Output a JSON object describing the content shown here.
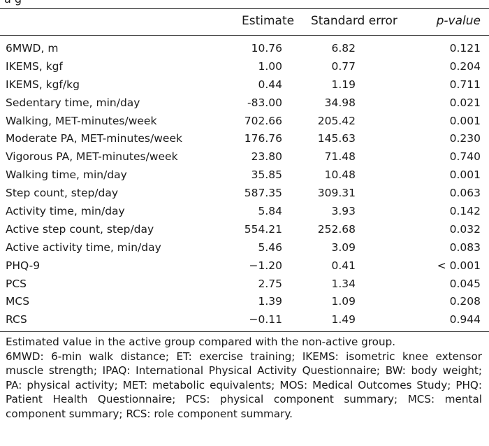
{
  "table": {
    "top_fragment": "a        g",
    "headers": {
      "estimate": "Estimate",
      "standard_error": "Standard error",
      "p_value": "p-value"
    },
    "rows": [
      {
        "label": "6MWD, m",
        "estimate": "10.76",
        "se": "6.82",
        "p": "0.121"
      },
      {
        "label": "IKEMS, kgf",
        "estimate": "1.00",
        "se": "0.77",
        "p": "0.204"
      },
      {
        "label": "IKEMS, kgf/kg",
        "estimate": "0.44",
        "se": "1.19",
        "p": "0.711"
      },
      {
        "label": "Sedentary time, min/day",
        "estimate": "-83.00",
        "se": "34.98",
        "p": "0.021"
      },
      {
        "label": "Walking, MET-minutes/week",
        "estimate": "702.66",
        "se": "205.42",
        "p": "0.001"
      },
      {
        "label": "Moderate PA, MET-minutes/week",
        "estimate": "176.76",
        "se": "145.63",
        "p": "0.230"
      },
      {
        "label": "Vigorous PA, MET-minutes/week",
        "estimate": "23.80",
        "se": "71.48",
        "p": "0.740"
      },
      {
        "label": "Walking time, min/day",
        "estimate": "35.85",
        "se": "10.48",
        "p": "0.001"
      },
      {
        "label": "Step count, step/day",
        "estimate": "587.35",
        "se": "309.31",
        "p": "0.063"
      },
      {
        "label": "Activity time, min/day",
        "estimate": "5.84",
        "se": "3.93",
        "p": "0.142"
      },
      {
        "label": "Active step count, step/day",
        "estimate": "554.21",
        "se": "252.68",
        "p": "0.032"
      },
      {
        "label": "Active activity time, min/day",
        "estimate": "5.46",
        "se": "3.09",
        "p": "0.083"
      },
      {
        "label": "PHQ-9",
        "estimate": "−1.20",
        "se": "0.41",
        "p": "< 0.001"
      },
      {
        "label": "PCS",
        "estimate": "2.75",
        "se": "1.34",
        "p": "0.045"
      },
      {
        "label": "MCS",
        "estimate": "1.39",
        "se": "1.09",
        "p": "0.208"
      },
      {
        "label": "RCS",
        "estimate": "−0.11",
        "se": "1.49",
        "p": "0.944"
      }
    ]
  },
  "notes": {
    "line1": "Estimated value in the active group compared with the non-active group.",
    "line2": "6MWD: 6-min walk distance; ET: exercise training; IKEMS: isometric knee extensor muscle strength; IPAQ: International Physical Activity Questionnaire; BW: body weight; PA: physical activity; MET: metabolic equivalents; MOS: Medical Outcomes Study; PHQ: Patient Health Questionnaire; PCS: physical component summary; MCS: mental component summary; RCS: role component summary."
  }
}
